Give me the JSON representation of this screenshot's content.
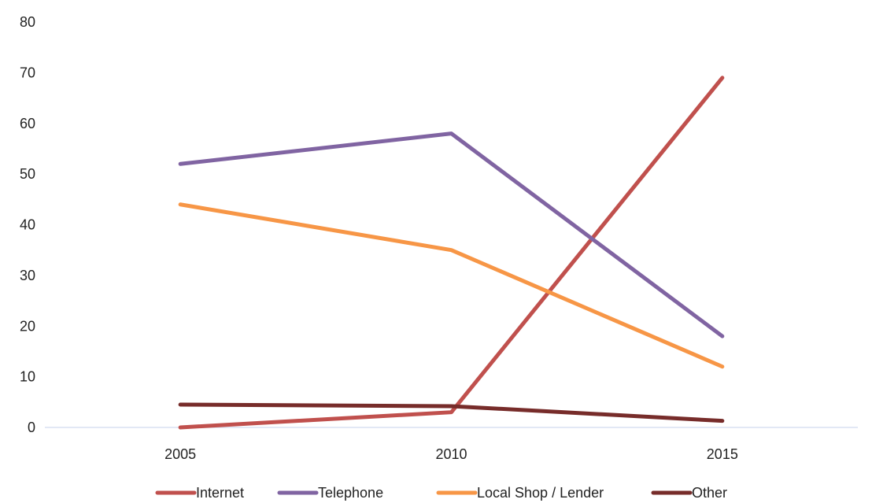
{
  "chart_data": {
    "type": "line",
    "categories": [
      "2005",
      "2010",
      "2015"
    ],
    "series": [
      {
        "name": "Internet",
        "values": [
          0,
          3,
          69
        ],
        "color": "#c0504d"
      },
      {
        "name": "Telephone",
        "values": [
          52,
          58,
          18
        ],
        "color": "#8064a2"
      },
      {
        "name": "Local Shop / Lender",
        "values": [
          44,
          35,
          12
        ],
        "color": "#f79646"
      },
      {
        "name": "Other",
        "values": [
          4.5,
          4.2,
          1.3
        ],
        "color": "#772c2a"
      }
    ],
    "title": "",
    "xlabel": "",
    "ylabel": "",
    "ylim": [
      0,
      80
    ],
    "yticks": [
      0,
      10,
      20,
      30,
      40,
      50,
      60,
      70,
      80
    ],
    "grid": false,
    "legend_position": "bottom",
    "axis_color": "#d9e1f2"
  }
}
